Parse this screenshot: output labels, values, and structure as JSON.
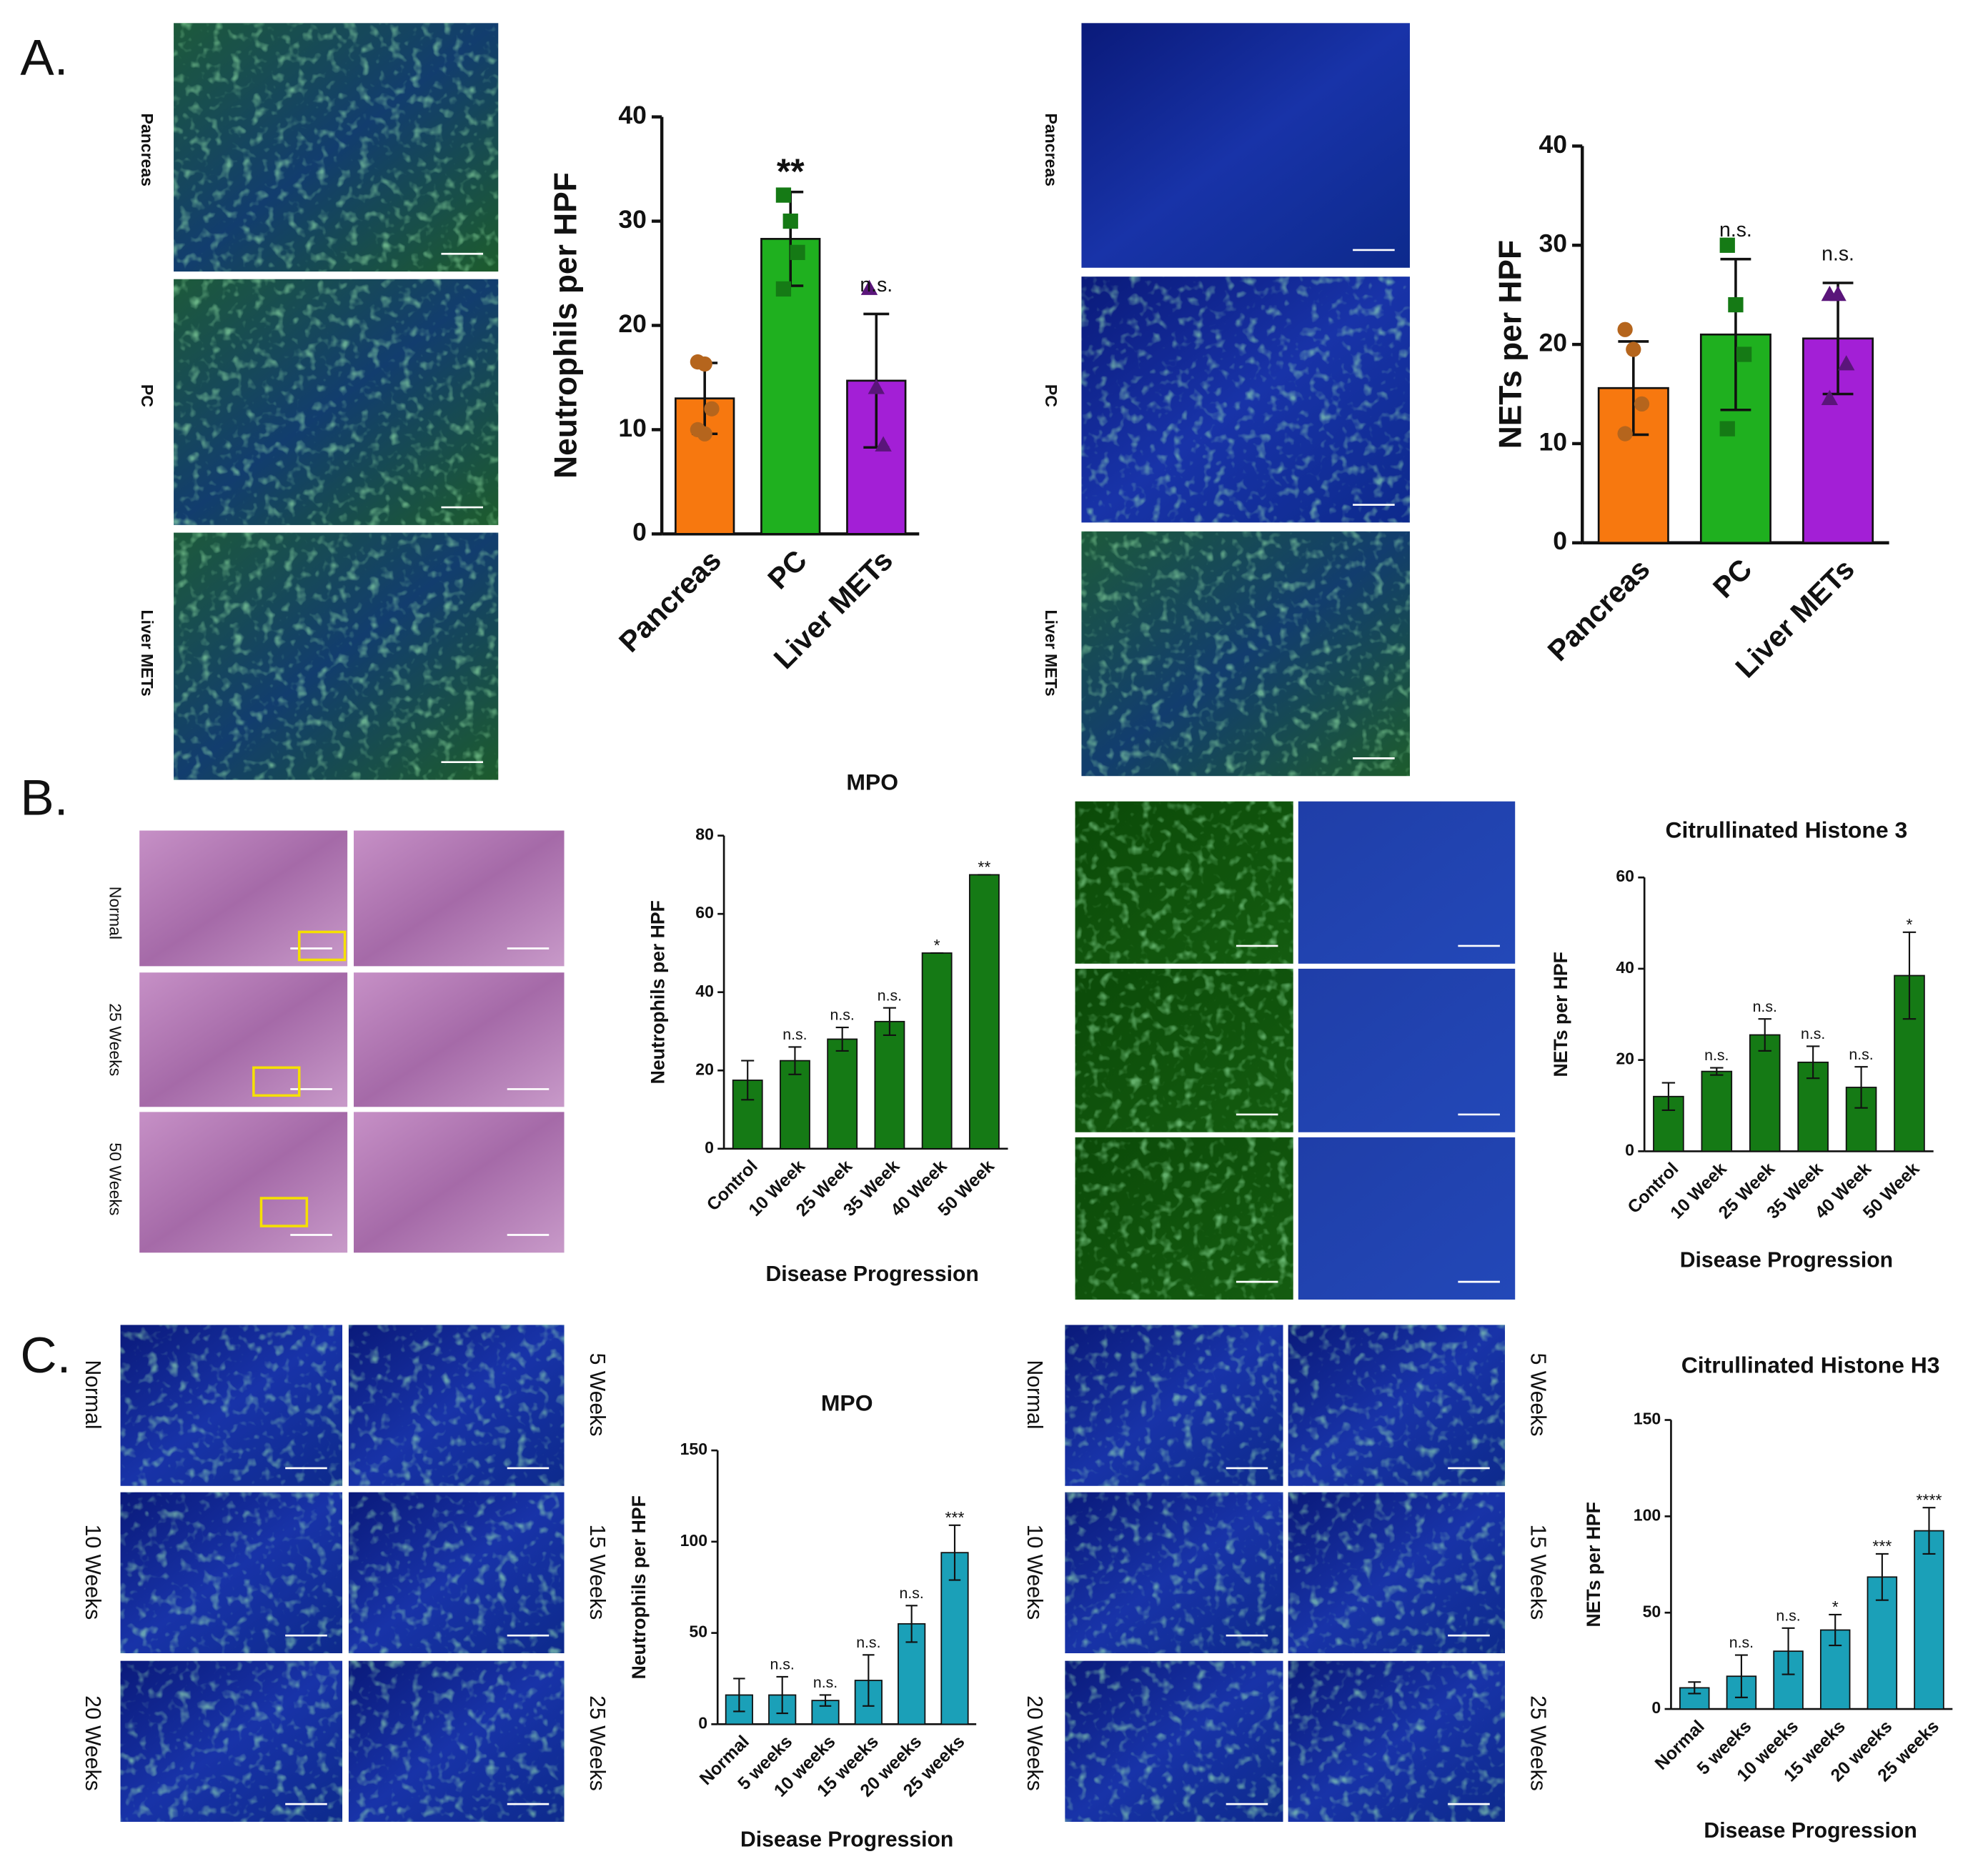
{
  "panel_labels": [
    "A.",
    "B.",
    "C."
  ],
  "image_labels": {
    "a_left": [
      "Pancreas",
      "PC",
      "Liver METs"
    ],
    "a_right": [
      "Pancreas",
      "PC",
      "Liver METs"
    ],
    "b": [
      "Normal",
      "25 Weeks",
      "50 Weeks"
    ],
    "c_left_left": [
      "Normal",
      "10 Weeks",
      "20 Weeks"
    ],
    "c_left_right": [
      "5 Weeks",
      "15 Weeks",
      "25 Weeks"
    ],
    "c_right_left": [
      "Normal",
      "10 Weeks",
      "20 Weeks"
    ],
    "c_right_right": [
      "5 Weeks",
      "15 Weeks",
      "25 Weeks"
    ]
  },
  "chart_data": [
    {
      "type": "bar",
      "ylabel": "Neutrophils per HPF",
      "categories": [
        "Pancreas",
        "PC",
        "Liver METs"
      ],
      "values": [
        13,
        28.3,
        14.7
      ],
      "errors": [
        3.4,
        4.5,
        6.4
      ],
      "colors": [
        "#f7780f",
        "#1fb01f",
        "#a31fd6"
      ],
      "points": [
        [
          16.5,
          16.3,
          12,
          10,
          9.6
        ],
        [
          32.5,
          30,
          27,
          23.5
        ],
        [
          23.5,
          14,
          8.5
        ]
      ],
      "markers": [
        "circle",
        "square",
        "triangle"
      ],
      "point_color": [
        "#b5651d",
        "#157a15",
        "#5a157a"
      ],
      "annotations": [
        null,
        "**",
        "n.s."
      ],
      "ylim": [
        0,
        40
      ],
      "yticks": [
        0,
        10,
        20,
        30,
        40
      ]
    },
    {
      "type": "bar",
      "ylabel": "NETs per HPF",
      "categories": [
        "Pancreas",
        "PC",
        "Liver METs"
      ],
      "values": [
        15.6,
        21,
        20.6
      ],
      "errors": [
        4.7,
        7.6,
        5.6
      ],
      "colors": [
        "#f7780f",
        "#1fb01f",
        "#a31fd6"
      ],
      "points": [
        [
          21.5,
          19.5,
          14,
          11
        ],
        [
          30,
          24,
          19,
          11.5
        ],
        [
          25,
          25,
          18,
          14.5
        ]
      ],
      "markers": [
        "circle",
        "square",
        "triangle"
      ],
      "point_color": [
        "#b5651d",
        "#157a15",
        "#5a157a"
      ],
      "annotations": [
        null,
        "n.s.",
        "n.s."
      ],
      "ylim": [
        0,
        40
      ],
      "yticks": [
        0,
        10,
        20,
        30,
        40
      ]
    },
    {
      "type": "bar",
      "title": "MPO",
      "ylabel": "Neutrophils per HPF",
      "xlabel": "Disease Progression",
      "categories": [
        "Control",
        "10 Week",
        "25 Week",
        "35 Week",
        "40 Week",
        "50 Week"
      ],
      "values": [
        17.5,
        22.5,
        28,
        32.5,
        50,
        70
      ],
      "errors": [
        5,
        3.5,
        3,
        3.5,
        0,
        0
      ],
      "color": "#157a15",
      "annotations": [
        null,
        "n.s.",
        "n.s.",
        "n.s.",
        "*",
        "**"
      ],
      "ylim": [
        0,
        80
      ],
      "yticks": [
        0,
        20,
        40,
        60,
        80
      ]
    },
    {
      "type": "bar",
      "title": "Citrullinated Histone 3",
      "ylabel": "NETs per HPF",
      "xlabel": "Disease Progression",
      "categories": [
        "Control",
        "10 Week",
        "25 Week",
        "35 Week",
        "40 Week",
        "50 Week"
      ],
      "values": [
        12,
        17.5,
        25.5,
        19.5,
        14,
        38.5
      ],
      "errors": [
        3,
        0.8,
        3.5,
        3.5,
        4.5,
        9.5
      ],
      "color": "#157a15",
      "annotations": [
        null,
        "n.s.",
        "n.s.",
        "n.s.",
        "n.s.",
        "*"
      ],
      "ylim": [
        0,
        60
      ],
      "yticks": [
        0,
        20,
        40,
        60
      ]
    },
    {
      "type": "bar",
      "title": "MPO",
      "ylabel": "Neutrophils per HPF",
      "xlabel": "Disease Progression",
      "categories": [
        "Normal",
        "5 weeks",
        "10 weeks",
        "15 weeks",
        "20 weeks",
        "25 weeks"
      ],
      "values": [
        16,
        16,
        13,
        24,
        55,
        94
      ],
      "errors": [
        9,
        10,
        3,
        14,
        10,
        15
      ],
      "color": "#1ba0b8",
      "annotations": [
        null,
        "n.s.",
        "n.s.",
        "n.s.",
        "n.s.",
        "***"
      ],
      "ylim": [
        0,
        150
      ],
      "yticks": [
        0,
        50,
        100,
        150
      ]
    },
    {
      "type": "bar",
      "title": "Citrullinated Histone H3",
      "ylabel": "NETs per HPF",
      "xlabel": "Disease Progression",
      "categories": [
        "Normal",
        "5 weeks",
        "10 weeks",
        "15 weeks",
        "20 weeks",
        "25 weeks"
      ],
      "values": [
        11,
        17,
        30,
        41,
        68.5,
        92.5
      ],
      "errors": [
        3,
        11,
        12,
        8,
        12,
        12
      ],
      "color": "#1ba0b8",
      "annotations": [
        null,
        "n.s.",
        "n.s.",
        "*",
        "***",
        "****"
      ],
      "ylim": [
        0,
        150
      ],
      "yticks": [
        0,
        50,
        100,
        150
      ]
    }
  ]
}
